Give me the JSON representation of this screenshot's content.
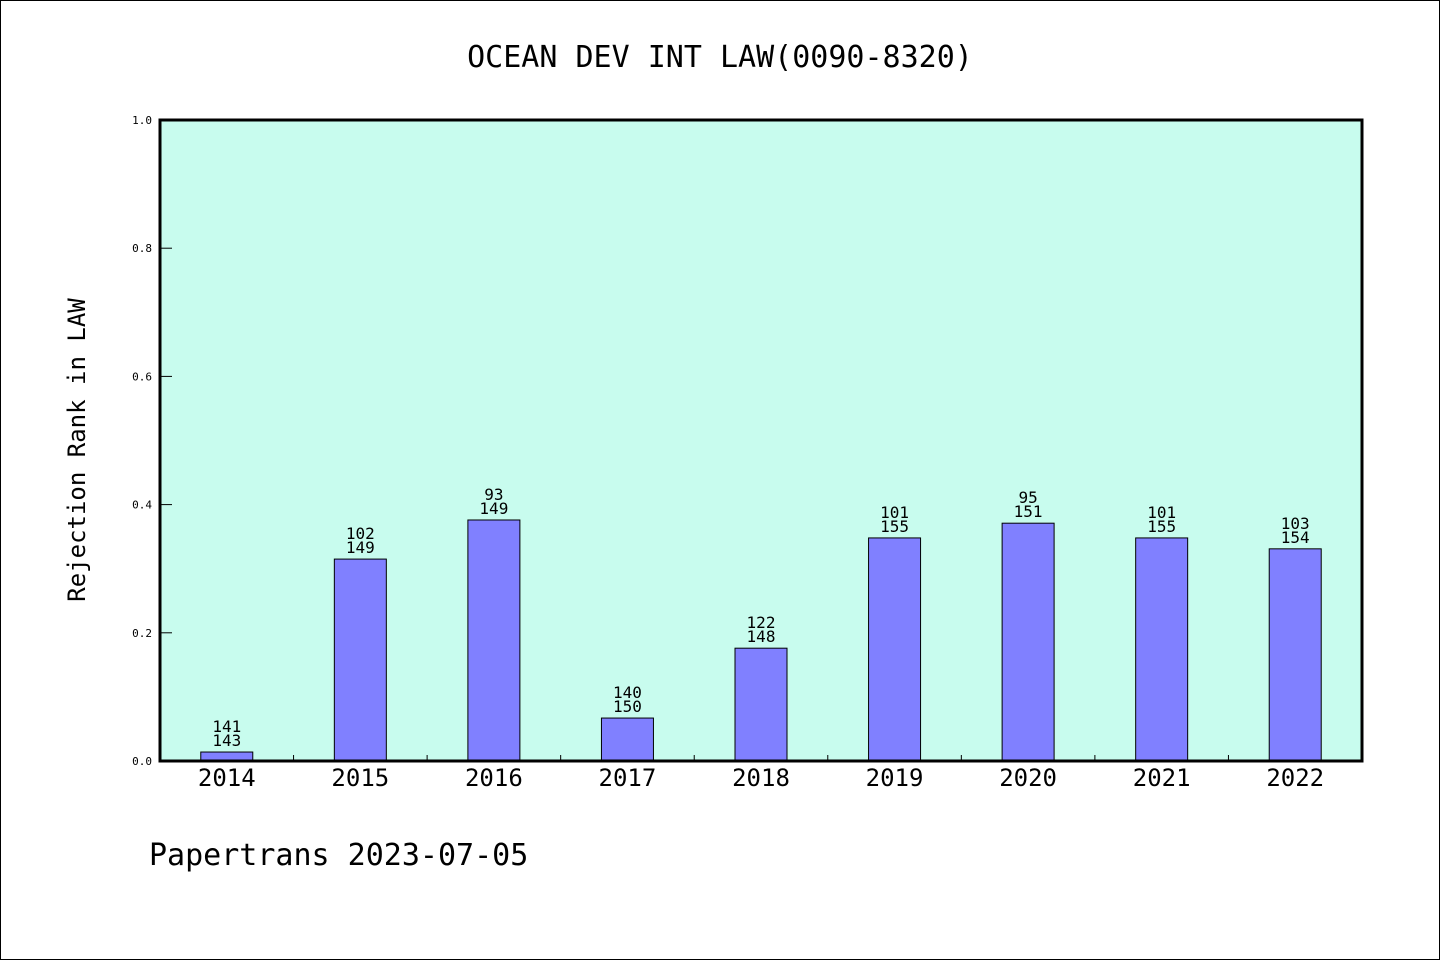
{
  "chart_data": {
    "type": "bar",
    "title": "OCEAN DEV INT LAW(0090-8320)",
    "xlabel": "",
    "ylabel": "Rejection Rank in LAW",
    "ylim": [
      0.0,
      1.0
    ],
    "yticks": [
      "0.0",
      "0.2",
      "0.4",
      "0.6",
      "0.8",
      "1.0"
    ],
    "categories": [
      "2014",
      "2015",
      "2016",
      "2017",
      "2018",
      "2019",
      "2020",
      "2021",
      "2022"
    ],
    "values": [
      0.014,
      0.315,
      0.376,
      0.067,
      0.176,
      0.348,
      0.371,
      0.348,
      0.331
    ],
    "labels_top": [
      "141",
      "102",
      "93",
      "140",
      "122",
      "101",
      "95",
      "101",
      "103"
    ],
    "labels_bottom": [
      "143",
      "149",
      "149",
      "150",
      "148",
      "155",
      "151",
      "155",
      "154"
    ],
    "grid": false,
    "colors": {
      "plot_bg": "#c8fcee",
      "bar": "#8080ff",
      "bar_edge": "#000000"
    }
  },
  "footer": "Papertrans 2023-07-05"
}
